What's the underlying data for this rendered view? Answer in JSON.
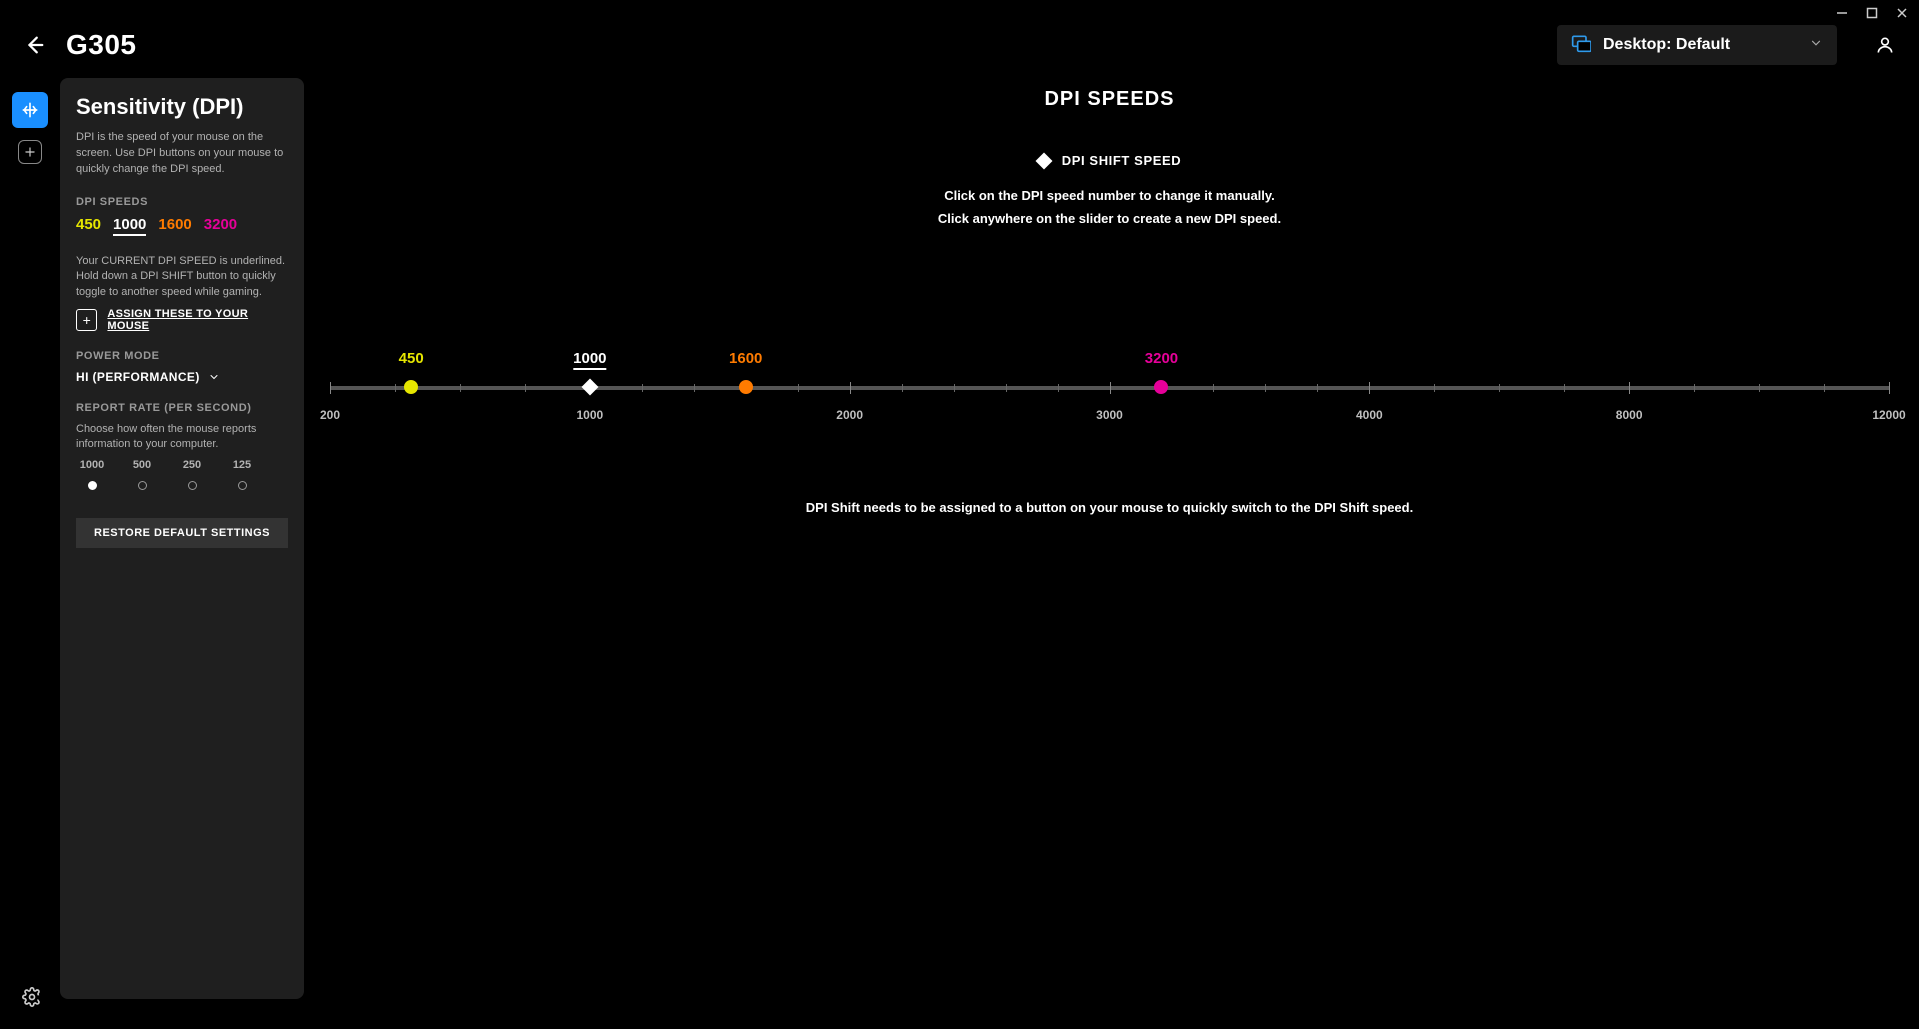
{
  "window": {
    "minimize": "−",
    "maximize": "□",
    "close": "×"
  },
  "header": {
    "device_name": "G305",
    "profile_label": "Desktop: Default"
  },
  "panel": {
    "title": "Sensitivity (DPI)",
    "description": "DPI is the speed of your mouse on the screen. Use DPI buttons on your mouse to quickly change the DPI speed.",
    "dpi_speeds_label": "DPI SPEEDS",
    "dpi_values": [
      {
        "value": "450",
        "color": "#e6e600",
        "current": false
      },
      {
        "value": "1000",
        "color": "#ffffff",
        "current": true
      },
      {
        "value": "1600",
        "color": "#ff7b00",
        "current": false
      },
      {
        "value": "3200",
        "color": "#e60099",
        "current": false
      }
    ],
    "current_note": "Your CURRENT DPI SPEED is underlined. Hold down a DPI SHIFT button to quickly toggle to another speed while gaming.",
    "assign_link": "ASSIGN THESE TO YOUR MOUSE",
    "power_mode_label": "POWER MODE",
    "power_mode_value": "HI (PERFORMANCE)",
    "report_rate_label": "REPORT RATE (PER SECOND)",
    "report_rate_desc": "Choose how often the mouse reports information to your computer.",
    "report_rates": [
      {
        "label": "1000",
        "selected": true
      },
      {
        "label": "500",
        "selected": false
      },
      {
        "label": "250",
        "selected": false
      },
      {
        "label": "125",
        "selected": false
      }
    ],
    "restore_label": "RESTORE DEFAULT SETTINGS"
  },
  "main": {
    "title": "DPI SPEEDS",
    "shift_label": "DPI SHIFT SPEED",
    "hint1": "Click on the DPI speed number to change it manually.",
    "hint2": "Click anywhere on the slider to create a new DPI speed.",
    "footnote": "DPI Shift needs to be assigned to a button on your mouse to quickly switch to the DPI Shift speed."
  },
  "slider": {
    "min": 200,
    "max": 12000,
    "axis_ticks": [
      200,
      1000,
      2000,
      3000,
      4000,
      8000,
      12000
    ],
    "minor_ticks": [
      400,
      600,
      800,
      1200,
      1400,
      1600,
      1800,
      2200,
      2400,
      2600,
      2800,
      3200,
      3400,
      3600,
      3800,
      5000,
      6000,
      7000,
      9000,
      10000,
      11000
    ],
    "handles": [
      {
        "value": 450,
        "label": "450",
        "color": "#e6e600",
        "shape": "circle",
        "current": false
      },
      {
        "value": 1000,
        "label": "1000",
        "color": "#ffffff",
        "shape": "diamond",
        "current": true
      },
      {
        "value": 1600,
        "label": "1600",
        "color": "#ff7b00",
        "shape": "circle",
        "current": false
      },
      {
        "value": 3200,
        "label": "3200",
        "color": "#e60099",
        "shape": "circle",
        "current": false
      }
    ]
  }
}
